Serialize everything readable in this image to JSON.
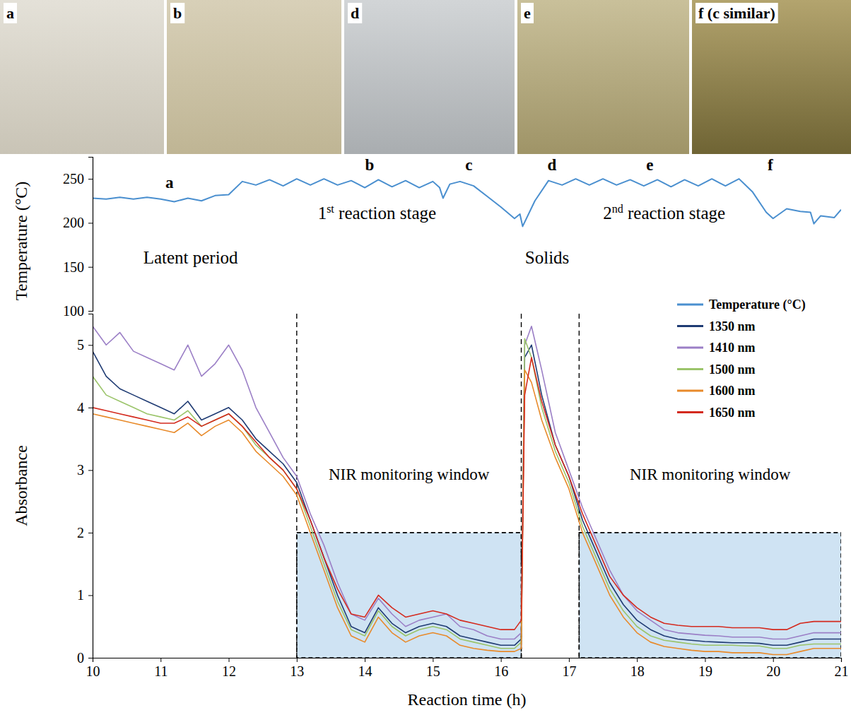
{
  "photo_panels": [
    "a",
    "b",
    "d",
    "e",
    "f (c similar)"
  ],
  "chart_data": {
    "type": "line",
    "x_label": "Reaction time (h)",
    "y_label": "Absorbance",
    "y2_label": "Temperature (°C)",
    "xlim": [
      10,
      21
    ],
    "xticks": [
      10,
      11,
      12,
      13,
      14,
      15,
      16,
      17,
      18,
      19,
      20,
      21
    ],
    "ylim": [
      0,
      5.5
    ],
    "yticks": [
      0,
      1,
      2,
      3,
      4,
      5
    ],
    "y2lim": [
      100,
      275
    ],
    "y2ticks": [
      100,
      150,
      200,
      250
    ],
    "legend": "upper right",
    "x": [
      10.0,
      10.2,
      10.4,
      10.6,
      10.8,
      11.0,
      11.2,
      11.4,
      11.6,
      11.8,
      12.0,
      12.2,
      12.4,
      12.6,
      12.8,
      13.0,
      13.2,
      13.4,
      13.6,
      13.8,
      14.0,
      14.2,
      14.4,
      14.6,
      14.8,
      15.0,
      15.2,
      15.4,
      15.6,
      15.8,
      16.0,
      16.2,
      16.3,
      16.35,
      16.45,
      16.6,
      16.8,
      17.0,
      17.2,
      17.4,
      17.6,
      17.8,
      18.0,
      18.2,
      18.4,
      18.6,
      18.8,
      19.0,
      19.2,
      19.4,
      19.6,
      19.8,
      20.0,
      20.2,
      20.4,
      20.6,
      20.8,
      21.0
    ],
    "series": [
      {
        "name": "Temperature (°C)",
        "color": "#4a8fcf",
        "axis": "y2",
        "x": [
          10.0,
          10.2,
          10.4,
          10.6,
          10.8,
          11.0,
          11.2,
          11.4,
          11.6,
          11.8,
          12.0,
          12.2,
          12.4,
          12.6,
          12.8,
          13.0,
          13.2,
          13.4,
          13.6,
          13.8,
          14.0,
          14.2,
          14.4,
          14.6,
          14.8,
          15.0,
          15.1,
          15.15,
          15.25,
          15.4,
          15.6,
          15.8,
          16.0,
          16.2,
          16.28,
          16.32,
          16.5,
          16.7,
          16.9,
          17.1,
          17.3,
          17.5,
          17.7,
          17.9,
          18.1,
          18.3,
          18.5,
          18.7,
          18.9,
          19.1,
          19.3,
          19.5,
          19.7,
          19.9,
          20.0,
          20.2,
          20.4,
          20.55,
          20.6,
          20.7,
          20.9,
          21.0
        ],
        "values": [
          228,
          227,
          229,
          227,
          229,
          227,
          224,
          228,
          225,
          231,
          232,
          247,
          243,
          249,
          242,
          250,
          243,
          250,
          243,
          248,
          240,
          249,
          241,
          248,
          240,
          247,
          240,
          228,
          244,
          247,
          242,
          230,
          218,
          205,
          210,
          196,
          225,
          248,
          243,
          250,
          243,
          250,
          243,
          249,
          242,
          249,
          241,
          249,
          242,
          250,
          242,
          250,
          235,
          212,
          205,
          216,
          213,
          212,
          199,
          208,
          206,
          215
        ]
      },
      {
        "name": "1350 nm",
        "color": "#1f3b73",
        "values": [
          4.9,
          4.5,
          4.3,
          4.2,
          4.1,
          4.0,
          3.9,
          4.1,
          3.8,
          3.9,
          4.0,
          3.8,
          3.5,
          3.3,
          3.1,
          2.8,
          2.2,
          1.6,
          1.0,
          0.5,
          0.4,
          0.8,
          0.55,
          0.4,
          0.5,
          0.55,
          0.5,
          0.35,
          0.3,
          0.25,
          0.2,
          0.2,
          0.3,
          4.8,
          5.0,
          4.2,
          3.4,
          2.9,
          2.2,
          1.7,
          1.2,
          0.85,
          0.6,
          0.45,
          0.35,
          0.3,
          0.28,
          0.26,
          0.25,
          0.24,
          0.24,
          0.23,
          0.2,
          0.2,
          0.25,
          0.3,
          0.3,
          0.3
        ]
      },
      {
        "name": "1410 nm",
        "color": "#9b7fc6",
        "values": [
          5.3,
          5.0,
          5.2,
          4.9,
          4.8,
          4.7,
          4.6,
          5.0,
          4.5,
          4.7,
          5.0,
          4.6,
          4.0,
          3.6,
          3.2,
          2.9,
          2.3,
          1.8,
          1.2,
          0.7,
          0.6,
          0.95,
          0.7,
          0.5,
          0.6,
          0.65,
          0.7,
          0.5,
          0.45,
          0.35,
          0.3,
          0.3,
          0.4,
          5.0,
          5.3,
          4.6,
          3.6,
          3.0,
          2.4,
          1.9,
          1.4,
          1.0,
          0.75,
          0.6,
          0.45,
          0.4,
          0.38,
          0.36,
          0.35,
          0.33,
          0.33,
          0.33,
          0.3,
          0.3,
          0.35,
          0.4,
          0.4,
          0.4
        ]
      },
      {
        "name": "1500 nm",
        "color": "#9bc46a",
        "values": [
          4.5,
          4.2,
          4.1,
          4.0,
          3.9,
          3.85,
          3.8,
          3.95,
          3.7,
          3.8,
          3.9,
          3.7,
          3.4,
          3.2,
          3.0,
          2.7,
          2.1,
          1.5,
          0.9,
          0.45,
          0.35,
          0.75,
          0.5,
          0.35,
          0.45,
          0.5,
          0.45,
          0.3,
          0.25,
          0.2,
          0.15,
          0.15,
          0.25,
          5.1,
          4.8,
          4.0,
          3.3,
          2.8,
          2.1,
          1.6,
          1.1,
          0.75,
          0.5,
          0.35,
          0.28,
          0.25,
          0.22,
          0.2,
          0.2,
          0.2,
          0.19,
          0.19,
          0.15,
          0.15,
          0.2,
          0.22,
          0.22,
          0.22
        ]
      },
      {
        "name": "1600 nm",
        "color": "#e88a2a",
        "values": [
          3.9,
          3.85,
          3.8,
          3.75,
          3.7,
          3.65,
          3.6,
          3.75,
          3.55,
          3.7,
          3.8,
          3.6,
          3.3,
          3.1,
          2.9,
          2.6,
          2.0,
          1.4,
          0.8,
          0.35,
          0.25,
          0.65,
          0.4,
          0.25,
          0.35,
          0.4,
          0.35,
          0.2,
          0.15,
          0.12,
          0.1,
          0.1,
          0.15,
          4.6,
          4.4,
          3.8,
          3.2,
          2.7,
          2.0,
          1.5,
          1.0,
          0.65,
          0.4,
          0.25,
          0.18,
          0.15,
          0.12,
          0.1,
          0.1,
          0.08,
          0.08,
          0.08,
          0.05,
          0.05,
          0.1,
          0.15,
          0.15,
          0.15
        ]
      },
      {
        "name": "1650 nm",
        "color": "#d42a1e",
        "values": [
          4.0,
          3.95,
          3.9,
          3.85,
          3.8,
          3.75,
          3.75,
          3.85,
          3.7,
          3.8,
          3.9,
          3.7,
          3.45,
          3.2,
          3.0,
          2.7,
          2.2,
          1.6,
          1.1,
          0.7,
          0.65,
          1.0,
          0.8,
          0.65,
          0.7,
          0.75,
          0.7,
          0.6,
          0.55,
          0.5,
          0.45,
          0.45,
          0.6,
          4.2,
          4.8,
          4.1,
          3.4,
          2.9,
          2.3,
          1.8,
          1.3,
          1.0,
          0.8,
          0.65,
          0.55,
          0.52,
          0.5,
          0.5,
          0.5,
          0.48,
          0.48,
          0.48,
          0.45,
          0.45,
          0.55,
          0.58,
          0.58,
          0.58
        ]
      }
    ],
    "regions": [
      {
        "label": "NIR monitoring window",
        "x": [
          13,
          16.3
        ],
        "y": [
          0,
          2
        ]
      },
      {
        "label": "NIR monitoring window",
        "x": [
          17.15,
          21
        ],
        "y": [
          0,
          2
        ]
      }
    ],
    "vlines": [
      13,
      16.3,
      17.15
    ],
    "annotations": [
      {
        "text": "a",
        "x": 11.13,
        "y": 240,
        "axis": "y2"
      },
      {
        "text": "b",
        "x": 14.07,
        "y": 260,
        "axis": "y2"
      },
      {
        "text": "c",
        "x": 15.53,
        "y": 260,
        "axis": "y2"
      },
      {
        "text": "d",
        "x": 16.75,
        "y": 260,
        "axis": "y2"
      },
      {
        "text": "e",
        "x": 18.19,
        "y": 260,
        "axis": "y2"
      },
      {
        "text": "f",
        "x": 19.96,
        "y": 260,
        "axis": "y2"
      },
      {
        "text": "1st reaction stage",
        "x": 14.18,
        "y": 204,
        "axis": "y2"
      },
      {
        "text": "2nd reaction stage",
        "x": 18.4,
        "y": 204,
        "axis": "y2"
      },
      {
        "text": "Latent period",
        "x": 11.44,
        "y": 154,
        "axis": "y2"
      },
      {
        "text": "Solids",
        "x": 16.68,
        "y": 154,
        "axis": "y2"
      }
    ]
  }
}
